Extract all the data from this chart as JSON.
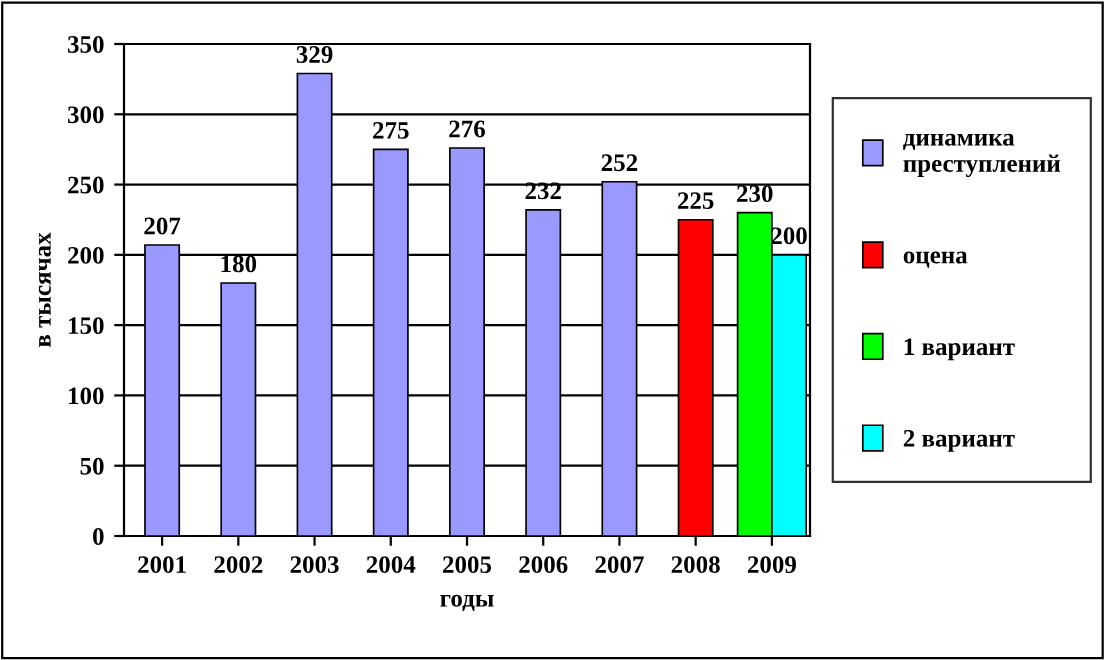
{
  "chart_data": {
    "type": "bar",
    "xlabel": "годы",
    "ylabel": "в тысячах",
    "categories": [
      "2001",
      "2002",
      "2003",
      "2004",
      "2005",
      "2006",
      "2007",
      "2008",
      "2009"
    ],
    "series": [
      {
        "name": "динамика преступлений",
        "color": "#9999ff",
        "values": [
          207,
          180,
          329,
          275,
          276,
          232,
          252,
          null,
          null
        ]
      },
      {
        "name": "оцена",
        "color": "#ff0000",
        "values": [
          null,
          null,
          null,
          null,
          null,
          null,
          null,
          225,
          null
        ]
      },
      {
        "name": "1 вариант",
        "color": "#00ff00",
        "values": [
          null,
          null,
          null,
          null,
          null,
          null,
          null,
          null,
          230
        ]
      },
      {
        "name": "2 вариант",
        "color": "#00ffff",
        "values": [
          null,
          null,
          null,
          null,
          null,
          null,
          null,
          null,
          200
        ]
      }
    ],
    "ylim": [
      0,
      350
    ],
    "yticks": [
      0,
      50,
      100,
      150,
      200,
      250,
      300,
      350
    ],
    "grid": "y",
    "legend": "right",
    "data_labels": true
  }
}
